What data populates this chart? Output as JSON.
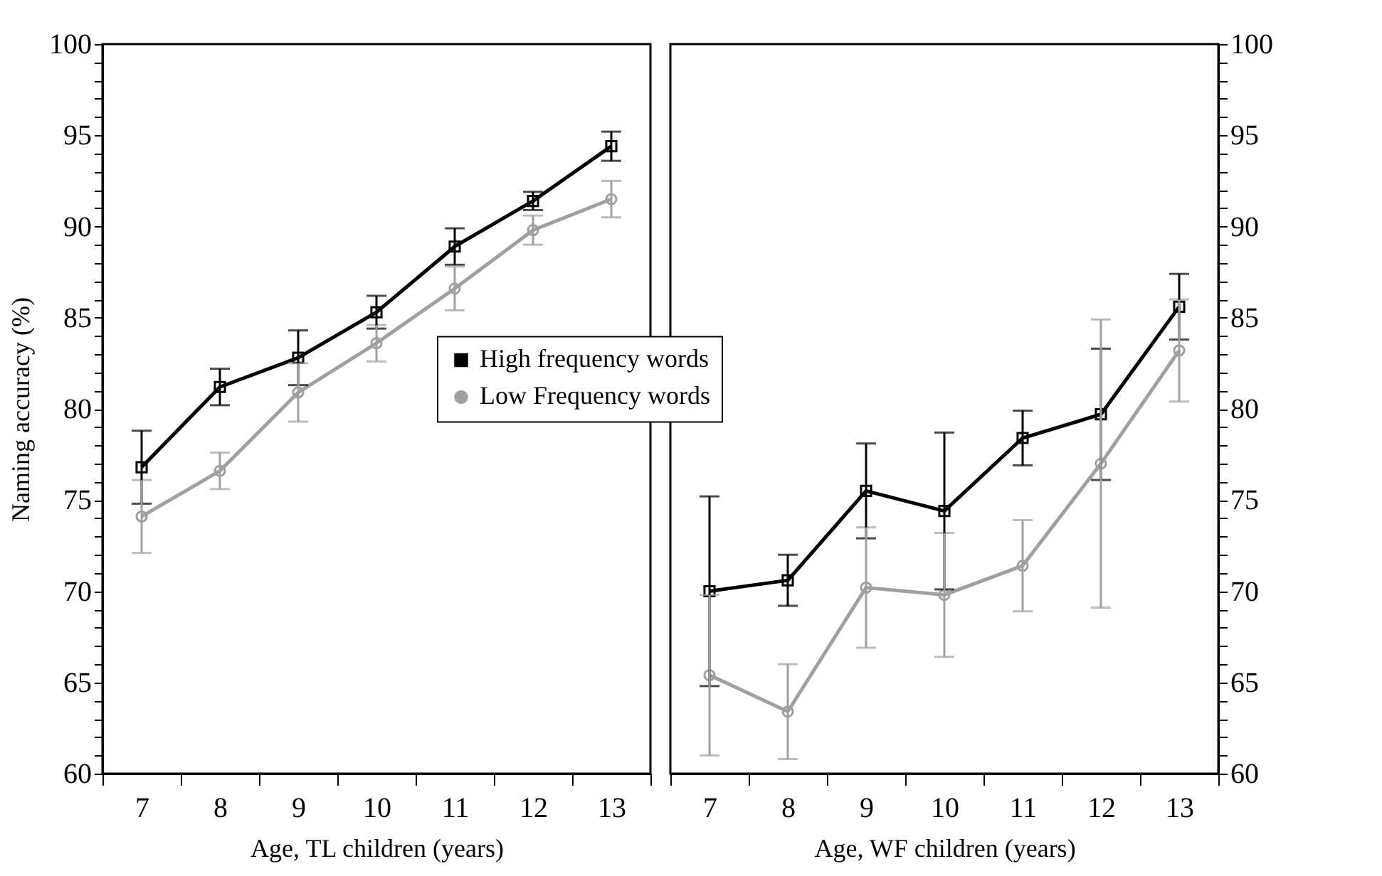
{
  "chart_data": [
    {
      "type": "line",
      "xlabel": "Age, TL children (years)",
      "ylabel": "Naming accuracy (%)",
      "categories": [
        "7",
        "8",
        "9",
        "10",
        "11",
        "12",
        "13"
      ],
      "ylim": [
        60,
        100
      ],
      "yticks": [
        60,
        {
          "value": 61,
          "label": null
        },
        {
          "value": 62,
          "label": null
        },
        {
          "value": 63,
          "label": null
        },
        {
          "value": 64,
          "label": null
        },
        65,
        {
          "value": 66,
          "label": null
        },
        {
          "value": 67,
          "label": null
        },
        {
          "value": 68,
          "label": null
        },
        {
          "value": 69,
          "label": null
        },
        70,
        {
          "value": 71,
          "label": null
        },
        {
          "value": 72,
          "label": null
        },
        {
          "value": 73,
          "label": null
        },
        {
          "value": 74,
          "label": null
        },
        75,
        {
          "value": 76,
          "label": null
        },
        {
          "value": 77,
          "label": null
        },
        {
          "value": 78,
          "label": null
        },
        {
          "value": 79,
          "label": null
        },
        80,
        {
          "value": 81,
          "label": null
        },
        {
          "value": 82,
          "label": null
        },
        {
          "value": 83,
          "label": null
        },
        {
          "value": 84,
          "label": null
        },
        85,
        {
          "value": 86,
          "label": null
        },
        {
          "value": 87,
          "label": null
        },
        {
          "value": 88,
          "label": null
        },
        {
          "value": 89,
          "label": null
        },
        90,
        {
          "value": 91,
          "label": null
        },
        {
          "value": 92,
          "label": null
        },
        {
          "value": 93,
          "label": null
        },
        {
          "value": 94,
          "label": null
        },
        95,
        {
          "value": 96,
          "label": null
        },
        {
          "value": 97,
          "label": null
        },
        {
          "value": 98,
          "label": null
        },
        {
          "value": 99,
          "label": null
        },
        100
      ],
      "legend": "right",
      "series": [
        {
          "name": "High frequency words",
          "color": "#000000",
          "marker": "square",
          "values": [
            76.8,
            81.2,
            82.8,
            85.3,
            88.9,
            91.4,
            94.4
          ],
          "errors": [
            2,
            1,
            1.5,
            0.9,
            1,
            0.5,
            0.8
          ]
        },
        {
          "name": "Low Frequency words",
          "color": "#a0a0a0",
          "marker": "circle",
          "values": [
            74.1,
            76.6,
            80.9,
            83.6,
            86.6,
            89.8,
            91.5
          ],
          "errors": [
            2,
            1,
            1.6,
            1,
            1.2,
            0.8,
            1
          ]
        }
      ]
    },
    {
      "type": "line",
      "xlabel": "Age, WF children (years)",
      "categories": [
        "7",
        "8",
        "9",
        "10",
        "11",
        "12",
        "13"
      ],
      "y2lim": [
        60,
        100
      ],
      "y2ticks": [
        60,
        {
          "value": 61,
          "label": null
        },
        {
          "value": 62,
          "label": null
        },
        {
          "value": 63,
          "label": null
        },
        {
          "value": 64,
          "label": null
        },
        65,
        {
          "value": 66,
          "label": null
        },
        {
          "value": 67,
          "label": null
        },
        {
          "value": 68,
          "label": null
        },
        {
          "value": 69,
          "label": null
        },
        70,
        {
          "value": 71,
          "label": null
        },
        {
          "value": 72,
          "label": null
        },
        {
          "value": 73,
          "label": null
        },
        {
          "value": 74,
          "label": null
        },
        75,
        {
          "value": 76,
          "label": null
        },
        {
          "value": 77,
          "label": null
        },
        {
          "value": 78,
          "label": null
        },
        {
          "value": 79,
          "label": null
        },
        80,
        {
          "value": 81,
          "label": null
        },
        {
          "value": 82,
          "label": null
        },
        {
          "value": 83,
          "label": null
        },
        {
          "value": 84,
          "label": null
        },
        85,
        {
          "value": 86,
          "label": null
        },
        {
          "value": 87,
          "label": null
        },
        {
          "value": 88,
          "label": null
        },
        {
          "value": 89,
          "label": null
        },
        90,
        {
          "value": 91,
          "label": null
        },
        {
          "value": 92,
          "label": null
        },
        {
          "value": 93,
          "label": null
        },
        {
          "value": 94,
          "label": null
        },
        95,
        {
          "value": 96,
          "label": null
        },
        {
          "value": 97,
          "label": null
        },
        {
          "value": 98,
          "label": null
        },
        {
          "value": 99,
          "label": null
        },
        100
      ],
      "series": [
        {
          "name": "High frequency words",
          "color": "#000000",
          "marker": "square",
          "axis": "y2",
          "values": [
            70.0,
            70.6,
            75.5,
            74.4,
            78.4,
            79.7,
            85.6
          ],
          "errors": [
            5.2,
            1.4,
            2.6,
            4.3,
            1.5,
            3.6,
            1.8
          ]
        },
        {
          "name": "Low Frequency words",
          "color": "#a0a0a0",
          "marker": "circle",
          "axis": "y2",
          "values": [
            65.4,
            63.4,
            70.2,
            69.8,
            71.4,
            77.0,
            83.2
          ],
          "errors": [
            4.4,
            2.6,
            3.3,
            3.4,
            2.5,
            7.9,
            2.8
          ]
        }
      ]
    }
  ]
}
